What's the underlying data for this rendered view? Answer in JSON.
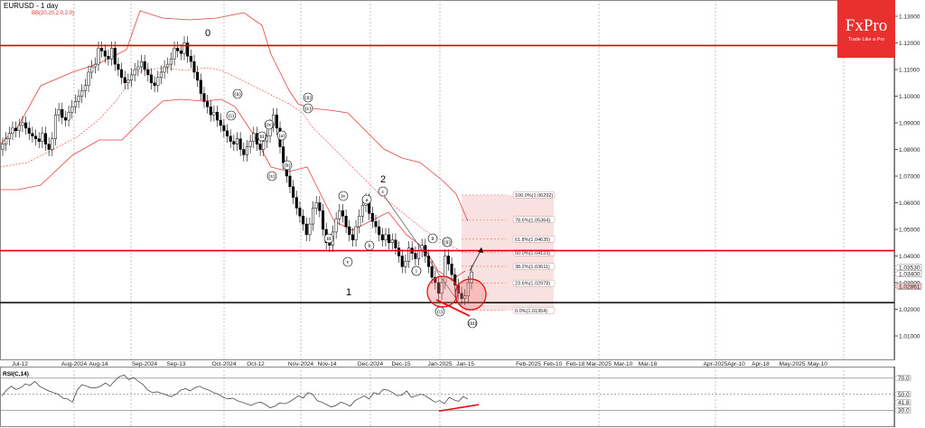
{
  "header": {
    "title": "EURUSD - 1 day",
    "indicator": "BB(20,20,2.0,2.0)"
  },
  "logo": {
    "brand": "FxPro",
    "tagline": "Trade Like a Pro"
  },
  "rsi": {
    "label": "RSI(C,14)",
    "levels": [
      "70.0",
      "50.0",
      "41.8",
      "30.0"
    ]
  },
  "colors": {
    "bollinger": "#e84040",
    "resistance": "#e00000",
    "support": "#000000",
    "fib_zone": "#f9dcdc",
    "brand": "#e8312e",
    "bull_candle": "#ffffff",
    "bear_candle": "#000000"
  },
  "chart_data": {
    "type": "candlestick",
    "title": "EURUSD - 1 day",
    "symbol": "EURUSD",
    "timeframe": "1 day",
    "ylim": [
      1.003,
      1.136
    ],
    "y_ticks": [
      "1.13000",
      "1.12000",
      "1.11000",
      "1.10000",
      "1.09000",
      "1.08000",
      "1.07000",
      "1.06000",
      "1.05000",
      "1.04000",
      "1.03000",
      "1.02000",
      "1.01000"
    ],
    "x_ticks": [
      "Jul-12",
      "Aug-2024",
      "Aug-14",
      "Sep-2024",
      "Sep-13",
      "Oct-2024",
      "Oct-12",
      "Nov-2024",
      "Nov-14",
      "Dec-2024",
      "Dec-15",
      "Jan-2025",
      "Jan-15",
      "Feb-2025",
      "Feb-10",
      "Feb-18",
      "Mar-2025",
      "Mar-10",
      "Mar-18",
      "Apr-2025",
      "Apr-10",
      "Apr-18",
      "May-2025",
      "May-10"
    ],
    "price_labels": {
      "current_bid": "1.03400",
      "current_ask": "1.02861",
      "extra": "1.03530"
    },
    "horizontal_lines": [
      {
        "name": "resistance-upper",
        "price": 1.119,
        "color": "#e00000"
      },
      {
        "name": "resistance-lower",
        "price": 1.042,
        "color": "#e00000"
      },
      {
        "name": "support",
        "price": 1.0225,
        "color": "#000000"
      }
    ],
    "fibonacci": [
      {
        "level": "100.0%",
        "price": "1.06292"
      },
      {
        "level": "78.6%",
        "price": "1.05364"
      },
      {
        "level": "61.8%",
        "price": "1.04635"
      },
      {
        "level": "50.0%",
        "price": "1.04123"
      },
      {
        "level": "38.2%",
        "price": "1.03611"
      },
      {
        "level": "23.6%",
        "price": "1.02978"
      },
      {
        "level": "0.0%",
        "price": "1.01954"
      }
    ],
    "wave_labels": [
      "0",
      "(ii)",
      "(i)",
      "(iii)",
      "(iv)",
      "(v)",
      "(a)",
      "(b)",
      "(c)",
      "(ii)",
      "i",
      "iii",
      "iv",
      "v",
      "1",
      "a",
      "b",
      "c",
      "2",
      "i",
      "ii",
      "(i)",
      "ii",
      "(ii)",
      "(iii)"
    ],
    "indicators": [
      "BB(20,20,2.0,2.0)",
      "RSI(C,14)"
    ],
    "rsi_last": 41.8,
    "rsi_levels": [
      70,
      50,
      30
    ],
    "legend": []
  }
}
